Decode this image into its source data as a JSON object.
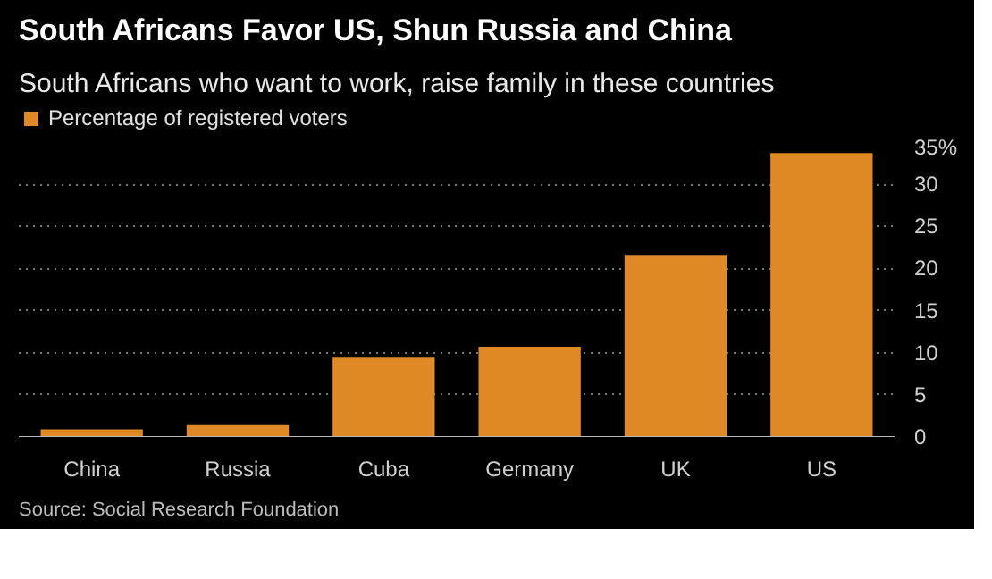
{
  "chart_data": {
    "type": "bar",
    "title": "South Africans Favor US, Shun Russia and China",
    "subtitle": "South Africans who want to work, raise family in these countries",
    "categories": [
      "China",
      "Russia",
      "Cuba",
      "Germany",
      "UK",
      "US"
    ],
    "series": [
      {
        "name": "Percentage of registered voters",
        "color": "#df8a26",
        "values": [
          0.9,
          1.4,
          9.4,
          10.7,
          21.6,
          33.7
        ]
      }
    ],
    "ylim": [
      0,
      35
    ],
    "yticks": [
      0,
      5,
      10,
      15,
      20,
      25,
      30,
      {
        "value": 35,
        "label": "35%"
      }
    ],
    "grid": "y",
    "legend": "top left",
    "annotations": [
      "Source: Social Research Foundation"
    ]
  }
}
